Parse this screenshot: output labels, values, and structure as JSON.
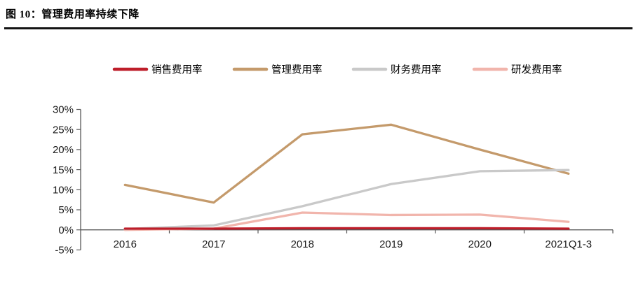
{
  "figure": {
    "title": "图 10：管理费用率持续下降"
  },
  "chart_data": {
    "type": "line",
    "title": "",
    "categories": [
      "2016",
      "2017",
      "2018",
      "2019",
      "2020",
      "2021Q1-3"
    ],
    "series": [
      {
        "name": "销售费用率",
        "color": "#be1e2a",
        "values": [
          0.3,
          0.3,
          0.4,
          0.4,
          0.4,
          0.3
        ]
      },
      {
        "name": "管理费用率",
        "color": "#c49a6b",
        "values": [
          11.2,
          6.8,
          23.8,
          26.2,
          20.0,
          14.0
        ]
      },
      {
        "name": "财务费用率",
        "color": "#c9c9c9",
        "values": [
          0.2,
          1.1,
          5.9,
          11.4,
          14.6,
          14.9
        ]
      },
      {
        "name": "研发费用率",
        "color": "#f1b5ac",
        "values": [
          0.0,
          0.3,
          4.3,
          3.7,
          3.8,
          2.0
        ]
      }
    ],
    "xlabel": "",
    "ylabel": "",
    "ylim": [
      -5,
      30
    ],
    "ytick_step": 5,
    "ytick_labels": [
      "30%",
      "25%",
      "20%",
      "15%",
      "10%",
      "5%",
      "0%",
      "-5%"
    ],
    "grid": false,
    "legend_position": "top",
    "axis_color": "#595959",
    "label_color": "#1a1a1a"
  }
}
